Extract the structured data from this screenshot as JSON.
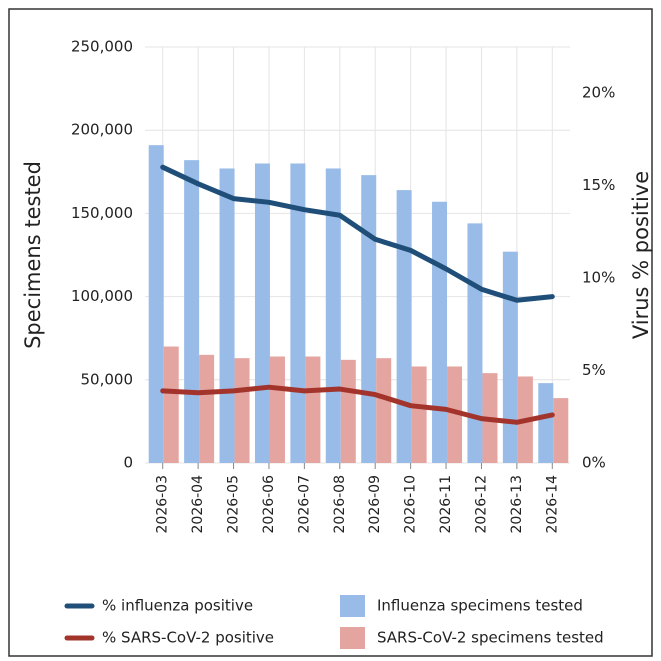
{
  "chart_data": {
    "type": "bar-line",
    "ylabel": "Specimens tested",
    "y2label": "Virus % positive",
    "categories": [
      "2026-03",
      "2026-04",
      "2026-05",
      "2026-06",
      "2026-07",
      "2026-08",
      "2026-09",
      "2026-10",
      "2026-11",
      "2026-12",
      "2026-13",
      "2026-14"
    ],
    "series": [
      {
        "name": "Influenza specimens tested",
        "type": "bar",
        "color": "#99bbe8",
        "values": [
          191000,
          182000,
          177000,
          180000,
          180000,
          177000,
          173000,
          164000,
          157000,
          144000,
          127000,
          48000
        ]
      },
      {
        "name": "SARS-CoV-2 specimens tested",
        "type": "bar",
        "color": "#e4a4a0",
        "values": [
          70000,
          65000,
          63000,
          64000,
          64000,
          62000,
          63000,
          58000,
          58000,
          54000,
          52000,
          39000
        ]
      },
      {
        "name": "% influenza positive",
        "type": "line",
        "axis": "y2",
        "color": "#1f4e79",
        "values": [
          16.0,
          15.1,
          14.3,
          14.1,
          13.7,
          13.4,
          12.1,
          11.5,
          10.5,
          9.4,
          8.8,
          9.0
        ]
      },
      {
        "name": "% SARS-CoV-2 positive",
        "type": "line",
        "axis": "y2",
        "color": "#a3342c",
        "values": [
          3.9,
          3.8,
          3.9,
          4.1,
          3.9,
          4.0,
          3.7,
          3.1,
          2.9,
          2.4,
          2.2,
          2.6
        ]
      }
    ],
    "ylim": [
      0,
      250000
    ],
    "yticks": [
      0,
      {
        "value": 50000,
        "label": "50,000"
      },
      {
        "value": 100000,
        "label": "100,000"
      },
      {
        "value": 150000,
        "label": "150,000"
      },
      {
        "value": 200000,
        "label": "200,000"
      },
      {
        "value": 250000,
        "label": "250,000"
      }
    ],
    "y2lim": [
      0,
      22.5
    ],
    "y2ticks": [
      {
        "value": 0,
        "label": "0%"
      },
      {
        "value": 5,
        "label": "5%"
      },
      {
        "value": 10,
        "label": "10%"
      },
      {
        "value": 15,
        "label": "15%"
      },
      {
        "value": 20,
        "label": "20%"
      }
    ],
    "grid": true
  }
}
